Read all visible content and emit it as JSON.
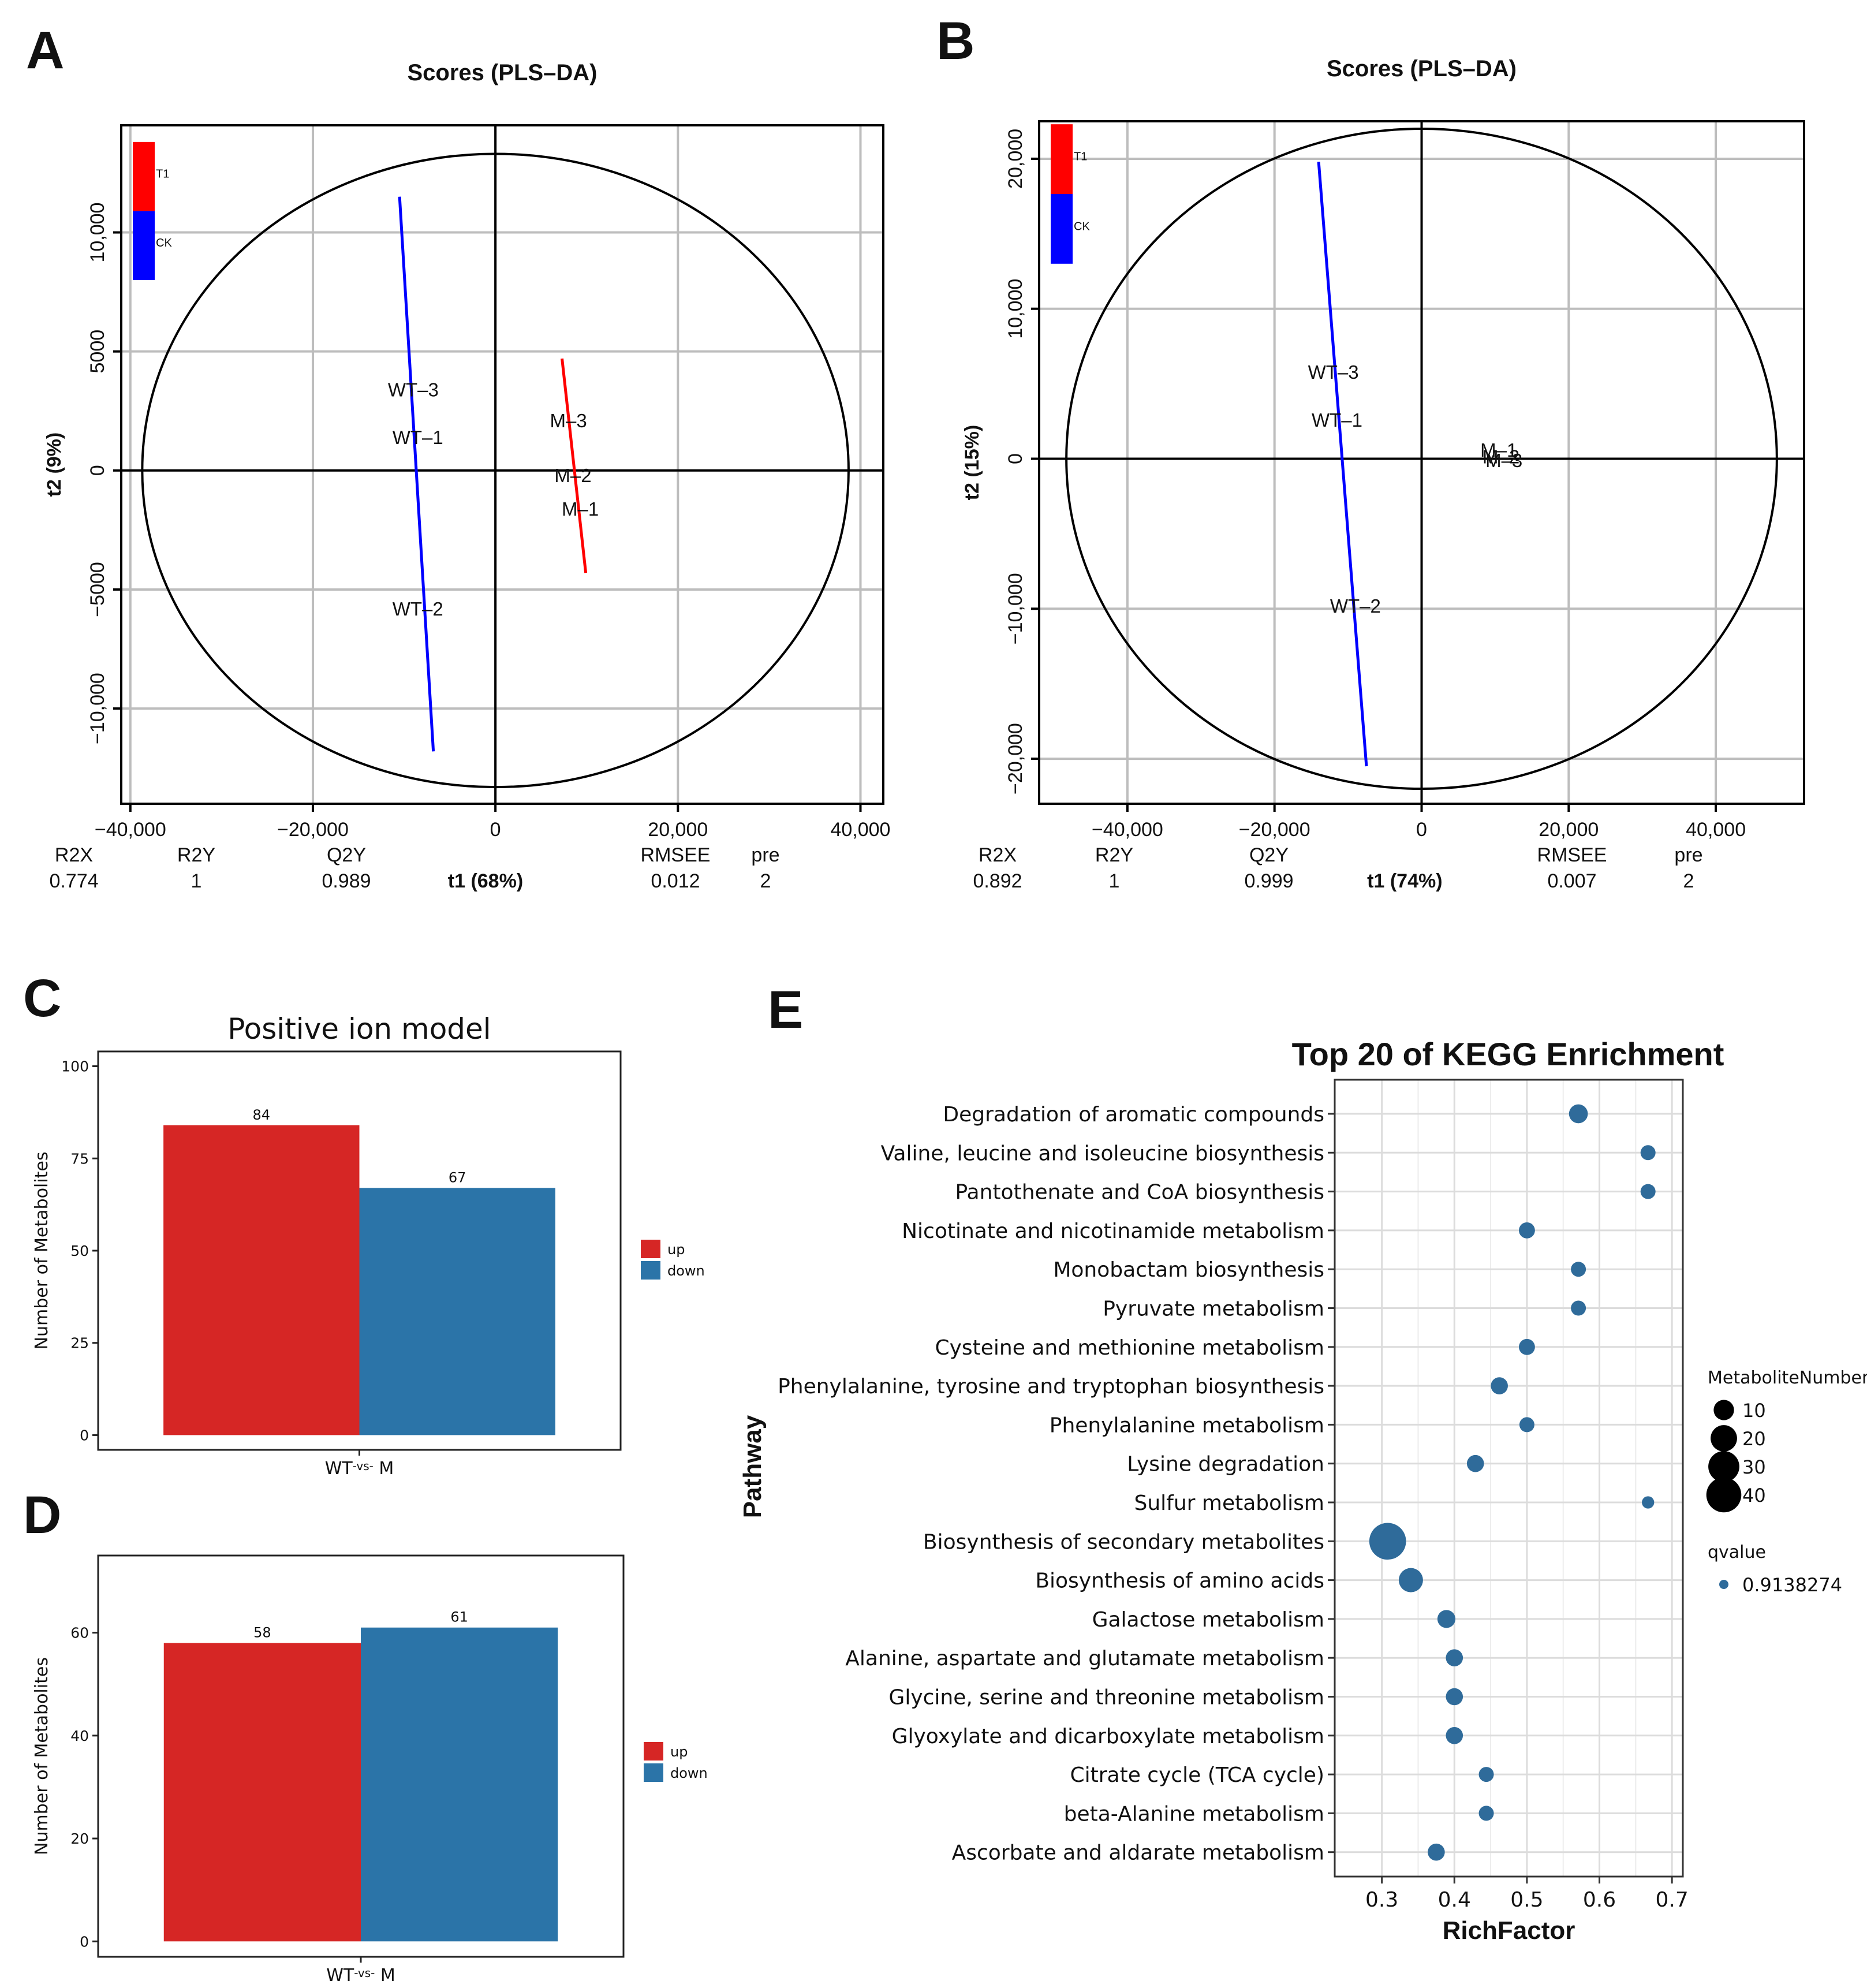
{
  "panels": {
    "A": "A",
    "B": "B",
    "C": "C",
    "D": "D",
    "E": "E"
  },
  "colors": {
    "red": "#ff0000",
    "blue": "#0000ff",
    "bar_up": "#d62625",
    "bar_down": "#2b74a8",
    "dot": "#2f6b9a"
  },
  "chart_data": [
    {
      "id": "A",
      "type": "scatter",
      "title": "Scores (PLS–DA)",
      "xlabel": "t1 (68%)",
      "ylabel": "t2 (9%)",
      "xlim": [
        -41000,
        42500
      ],
      "ylim": [
        -14000,
        14500
      ],
      "xticks": [
        -40000,
        -20000,
        0,
        20000,
        40000
      ],
      "xtick_labels": [
        "−40,000",
        "−20,000",
        "0",
        "20,000",
        "40,000"
      ],
      "yticks": [
        -10000,
        -5000,
        0,
        5000,
        10000
      ],
      "ytick_labels": [
        "−10,000",
        "−5000",
        "0",
        "5000",
        "10,000"
      ],
      "ellipse": {
        "rx": 38700,
        "ry": 13300
      },
      "legend": [
        {
          "label": "T1",
          "color": "#ff0000"
        },
        {
          "label": "CK",
          "color": "#0000ff"
        }
      ],
      "legend_ylim": [
        8000,
        13800
      ],
      "lines": [
        {
          "name": "CK",
          "color": "#0000ff",
          "x1": -10500,
          "y1": 11500,
          "x2": -6800,
          "y2": -11800
        },
        {
          "name": "T1",
          "color": "#ff0000",
          "x1": 7300,
          "y1": 4700,
          "x2": 9900,
          "y2": -4300
        }
      ],
      "points": [
        {
          "label": "WT–3",
          "x": -9000,
          "y": 3400,
          "color": "#0000ff"
        },
        {
          "label": "WT–1",
          "x": -8500,
          "y": 1400,
          "color": "#0000ff"
        },
        {
          "label": "WT–2",
          "x": -8500,
          "y": -5800,
          "color": "#0000ff"
        },
        {
          "label": "M–3",
          "x": 8000,
          "y": 2100,
          "color": "#ff0000"
        },
        {
          "label": "M–2",
          "x": 8500,
          "y": -200,
          "color": "#ff0000"
        },
        {
          "label": "M–1",
          "x": 9300,
          "y": -1600,
          "color": "#ff0000"
        }
      ],
      "stats": {
        "headers": [
          "R2X",
          "R2Y",
          "Q2Y",
          "RMSEE",
          "pre"
        ],
        "values": [
          "0.774",
          "1",
          "0.989",
          "0.012",
          "2"
        ]
      }
    },
    {
      "id": "B",
      "type": "scatter",
      "title": "Scores (PLS–DA)",
      "xlabel": "t1 (74%)",
      "ylabel": "t2 (15%)",
      "xlim": [
        -52000,
        52000
      ],
      "ylim": [
        -23000,
        22500
      ],
      "xticks": [
        -40000,
        -20000,
        0,
        20000,
        40000
      ],
      "xtick_labels": [
        "−40,000",
        "−20,000",
        "0",
        "20,000",
        "40,000"
      ],
      "yticks": [
        -20000,
        -10000,
        0,
        10000,
        20000
      ],
      "ytick_labels": [
        "−20,000",
        "−10,000",
        "0",
        "10,000",
        "20,000"
      ],
      "ellipse": {
        "rx": 48300,
        "ry": 22000
      },
      "legend": [
        {
          "label": "T1",
          "color": "#ff0000"
        },
        {
          "label": "CK",
          "color": "#0000ff"
        }
      ],
      "legend_ylim": [
        13000,
        22300
      ],
      "lines": [
        {
          "name": "CK",
          "color": "#0000ff",
          "x1": -14000,
          "y1": 19800,
          "x2": -7500,
          "y2": -20500
        }
      ],
      "points": [
        {
          "label": "WT–3",
          "x": -12000,
          "y": 5800,
          "color": "#0000ff"
        },
        {
          "label": "WT–1",
          "x": -11500,
          "y": 2600,
          "color": "#0000ff"
        },
        {
          "label": "WT–2",
          "x": -9000,
          "y": -9800,
          "color": "#0000ff"
        },
        {
          "label": "M–1",
          "x": 10500,
          "y": 600,
          "color": "#ff0000"
        },
        {
          "label": "M–2",
          "x": 10800,
          "y": 150,
          "color": "#ff0000"
        },
        {
          "label": "M–3",
          "x": 11200,
          "y": -100,
          "color": "#ff0000"
        }
      ],
      "stats": {
        "headers": [
          "R2X",
          "R2Y",
          "Q2Y",
          "RMSEE",
          "pre"
        ],
        "values": [
          "0.892",
          "1",
          "0.999",
          "0.007",
          "2"
        ]
      }
    },
    {
      "id": "C",
      "type": "bar",
      "title": "Positive ion model",
      "ylabel": "Number of Metabolites",
      "xlabel_parts": [
        "WT",
        "-vs-",
        "M"
      ],
      "ylim": [
        -4,
        104
      ],
      "yticks": [
        0,
        25,
        50,
        75,
        100
      ],
      "series": [
        {
          "name": "up",
          "value": 84,
          "color": "#d62625"
        },
        {
          "name": "down",
          "value": 67,
          "color": "#2b74a8"
        }
      ]
    },
    {
      "id": "D",
      "type": "bar",
      "title": "",
      "ylabel": "Number of Metabolites",
      "xlabel_parts": [
        "WT",
        "-vs-",
        "M"
      ],
      "ylim": [
        -3,
        75
      ],
      "yticks": [
        0,
        20,
        40,
        60
      ],
      "series": [
        {
          "name": "up",
          "value": 58,
          "color": "#d62625"
        },
        {
          "name": "down",
          "value": 61,
          "color": "#2b74a8"
        }
      ]
    },
    {
      "id": "E",
      "type": "scatter",
      "title": "Top 20 of KEGG Enrichment",
      "xlabel": "RichFactor",
      "ylabel": "Pathway",
      "xlim": [
        0.235,
        0.715
      ],
      "xticks": [
        0.3,
        0.4,
        0.5,
        0.6,
        0.7
      ],
      "xtick_labels": [
        "0.3",
        "0.4",
        "0.5",
        "0.6",
        "0.7"
      ],
      "size_legend_title": "MetaboliteNumber",
      "size_legend": [
        10,
        20,
        30,
        40
      ],
      "color_legend_title": "qvalue",
      "color_legend": [
        "0.9138274"
      ],
      "pathways": [
        {
          "name": "Degradation of aromatic compounds",
          "x": 0.571,
          "n": 8
        },
        {
          "name": "Valine, leucine and isoleucine biosynthesis",
          "x": 0.667,
          "n": 4
        },
        {
          "name": "Pantothenate and CoA biosynthesis",
          "x": 0.667,
          "n": 4
        },
        {
          "name": "Nicotinate and nicotinamide metabolism",
          "x": 0.5,
          "n": 5
        },
        {
          "name": "Monobactam biosynthesis",
          "x": 0.571,
          "n": 4
        },
        {
          "name": "Pyruvate metabolism",
          "x": 0.571,
          "n": 4
        },
        {
          "name": "Cysteine and methionine metabolism",
          "x": 0.5,
          "n": 5
        },
        {
          "name": "Phenylalanine, tyrosine and tryptophan biosynthesis",
          "x": 0.462,
          "n": 6
        },
        {
          "name": "Phenylalanine metabolism",
          "x": 0.5,
          "n": 4
        },
        {
          "name": "Lysine degradation",
          "x": 0.429,
          "n": 6
        },
        {
          "name": "Sulfur metabolism",
          "x": 0.667,
          "n": 2
        },
        {
          "name": "Biosynthesis of secondary metabolites",
          "x": 0.308,
          "n": 45
        },
        {
          "name": "Biosynthesis of amino acids",
          "x": 0.34,
          "n": 16
        },
        {
          "name": "Galactose metabolism",
          "x": 0.389,
          "n": 7
        },
        {
          "name": "Alanine, aspartate and glutamate metabolism",
          "x": 0.4,
          "n": 6
        },
        {
          "name": "Glycine, serine and threonine metabolism",
          "x": 0.4,
          "n": 6
        },
        {
          "name": "Glyoxylate and dicarboxylate metabolism",
          "x": 0.4,
          "n": 6
        },
        {
          "name": "Citrate cycle (TCA cycle)",
          "x": 0.444,
          "n": 4
        },
        {
          "name": "beta-Alanine metabolism",
          "x": 0.444,
          "n": 4
        },
        {
          "name": "Ascorbate and aldarate metabolism",
          "x": 0.375,
          "n": 6
        }
      ]
    }
  ]
}
